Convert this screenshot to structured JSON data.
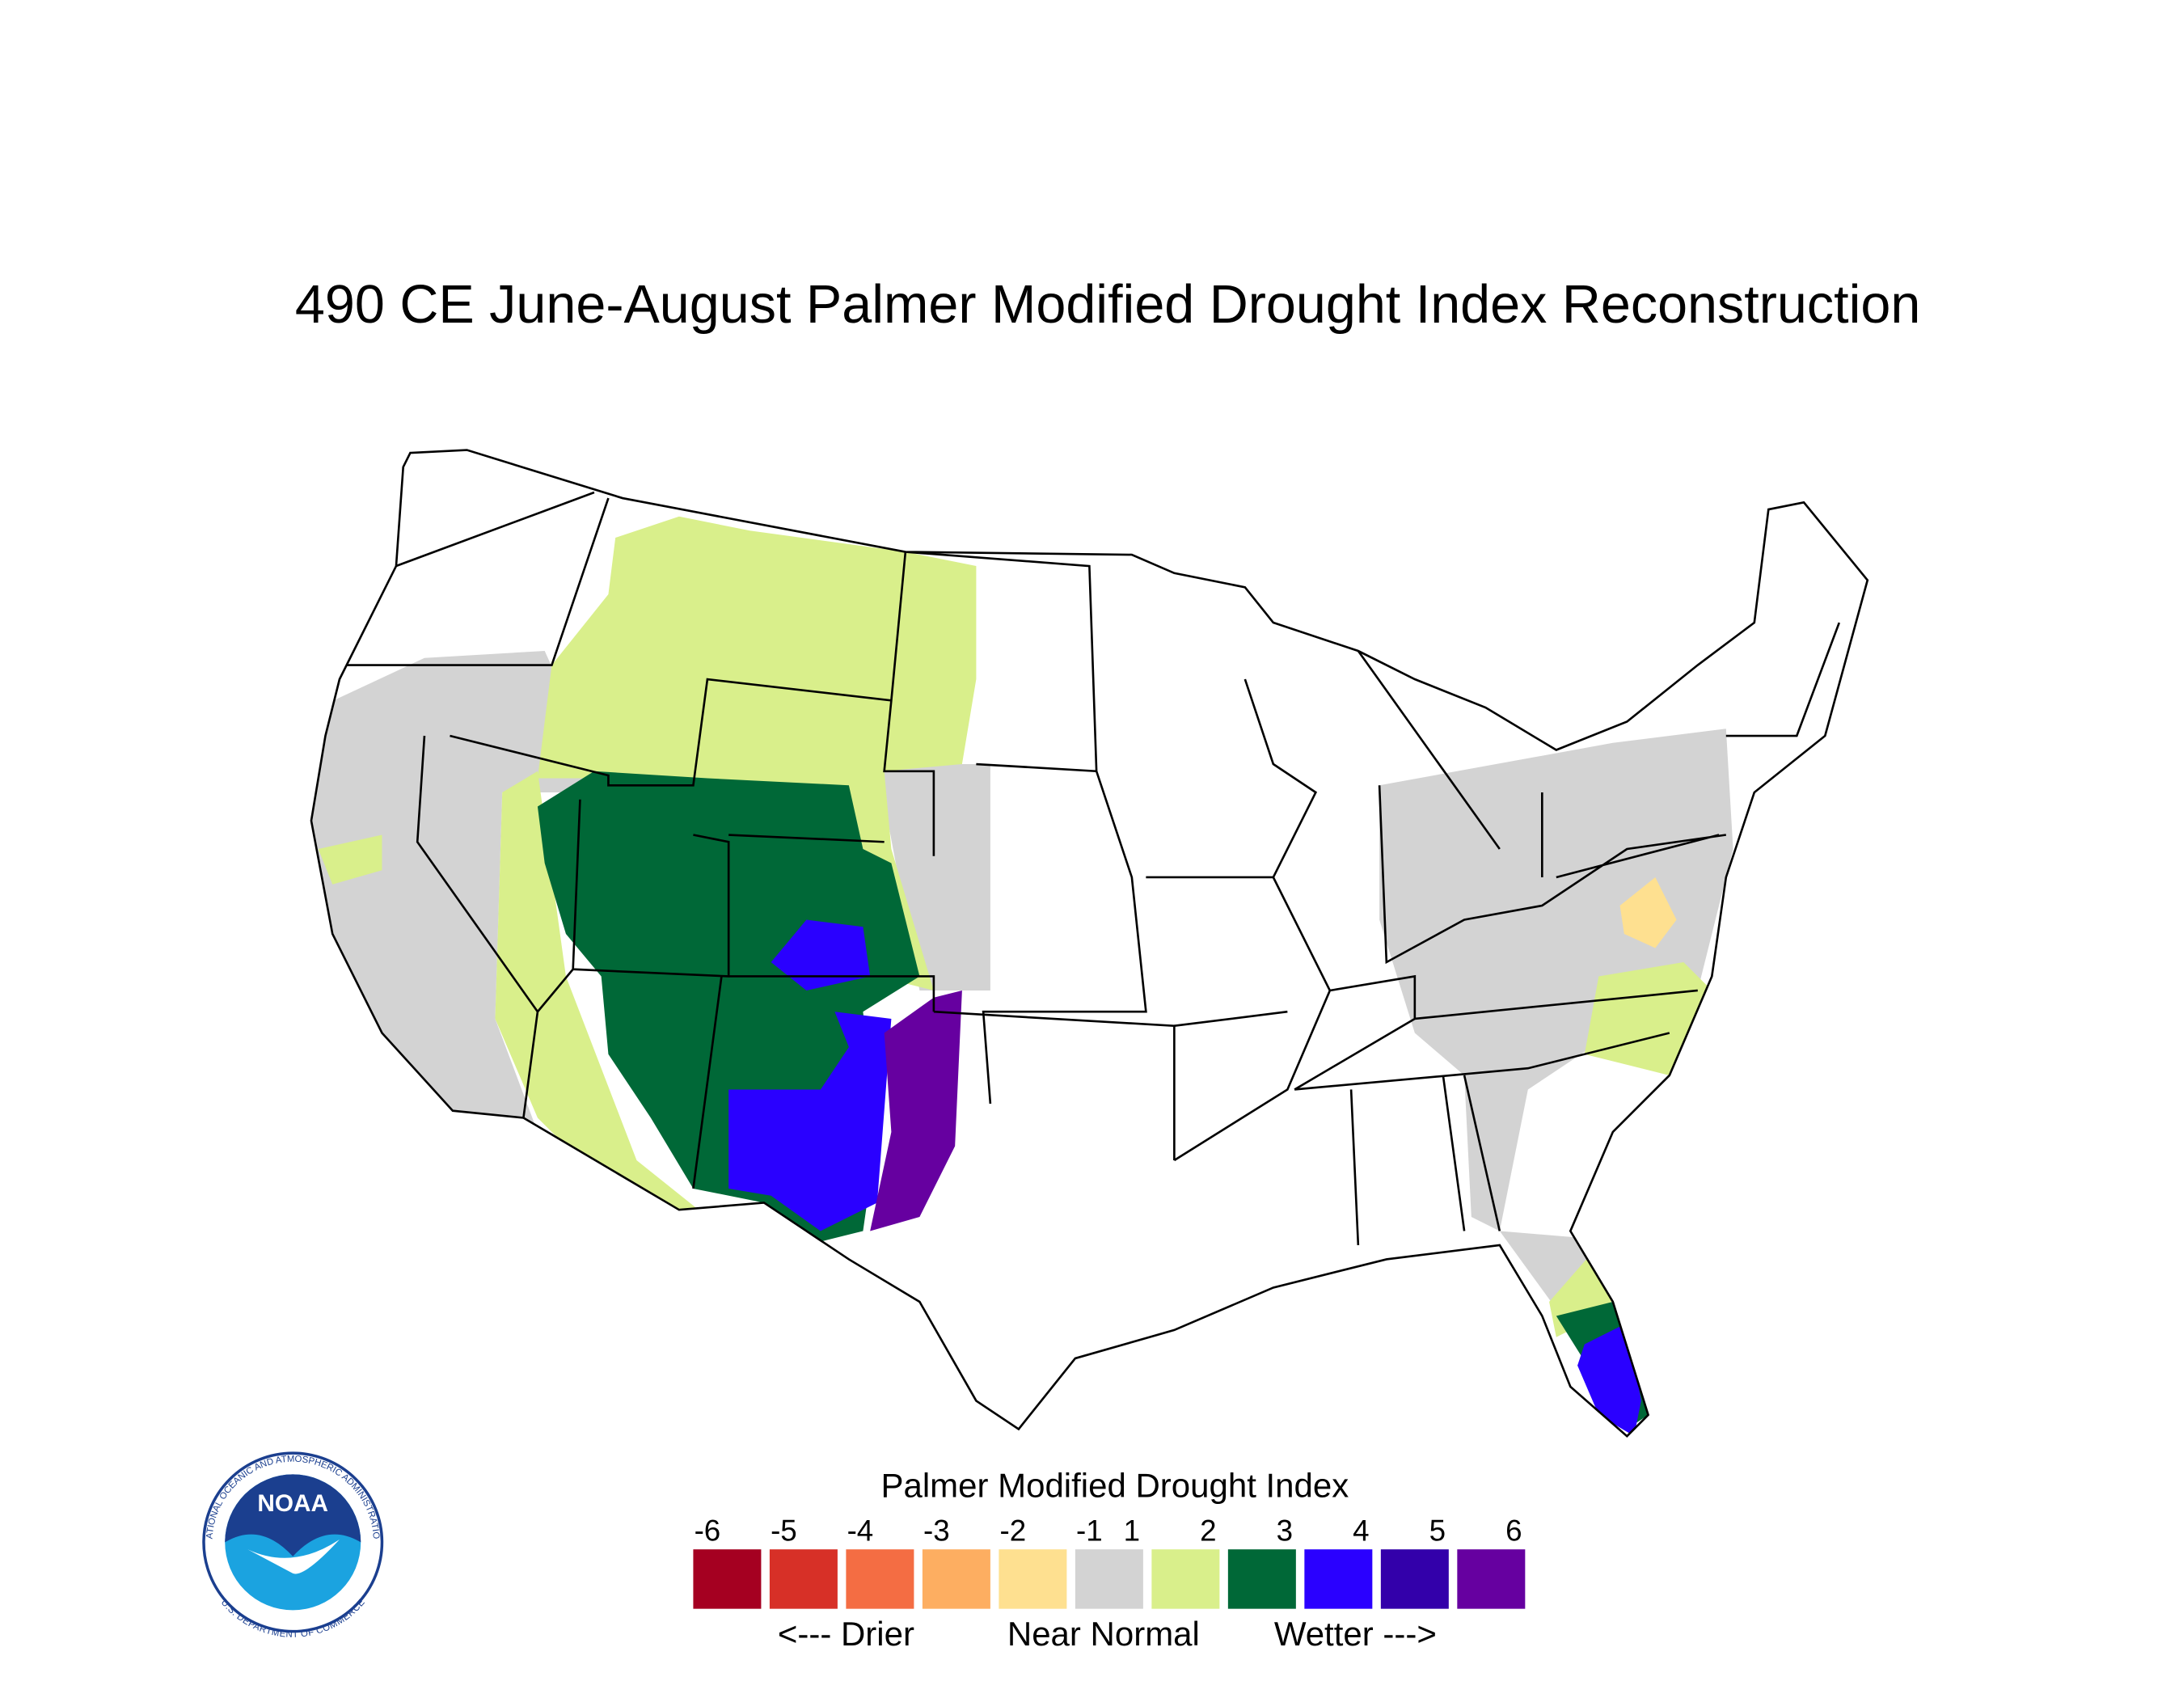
{
  "title": "490 CE  June-August  Palmer Modified Drought Index Reconstruction",
  "legend": {
    "title": "Palmer Modified Drought Index",
    "ticks": [
      "-6",
      "-5",
      "-4",
      "-3",
      "-2",
      "-1",
      "1",
      "2",
      "3",
      "4",
      "5",
      "6"
    ],
    "colors": [
      "#a50021",
      "#d73027",
      "#f46d43",
      "#fdae61",
      "#fee090",
      "#d3d3d3",
      "#d9ef8b",
      "#006837",
      "#2a00ff",
      "#3300aa",
      "#6600a0"
    ],
    "labels": [
      "<--- Drier",
      "Near Normal",
      "Wetter --->"
    ]
  },
  "logo": {
    "name": "NOAA",
    "ring_top": "NATIONAL OCEANIC AND ATMOSPHERIC ADMINISTRATION",
    "ring_bottom": "U.S. DEPARTMENT OF COMMERCE"
  }
}
